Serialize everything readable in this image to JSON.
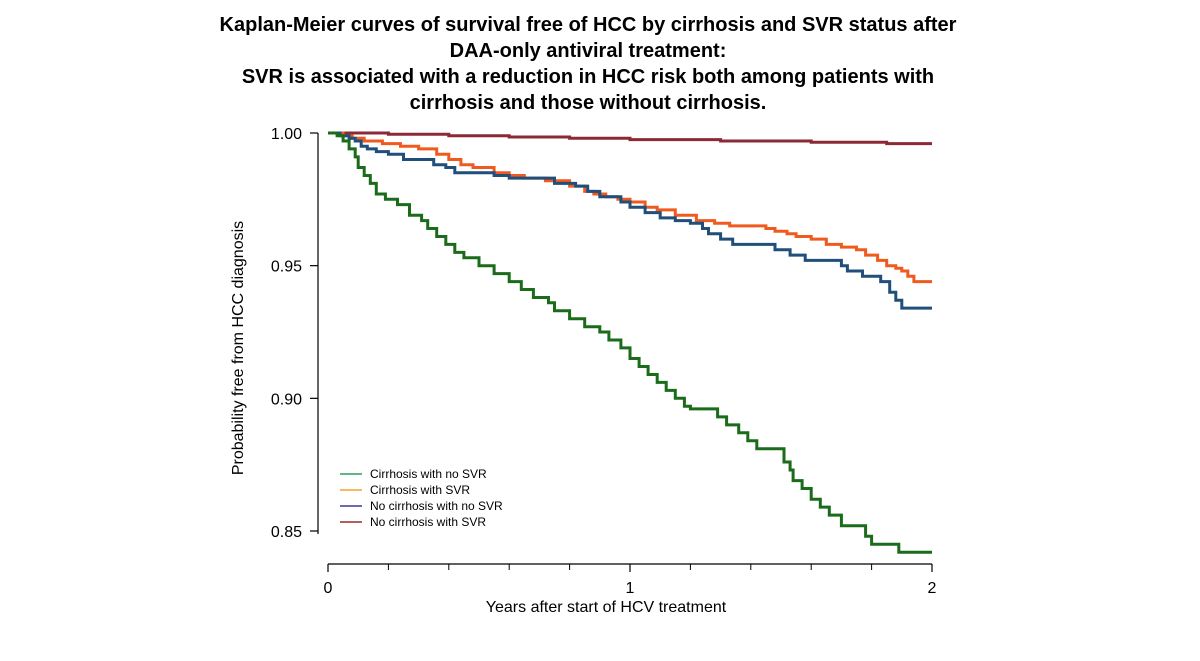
{
  "title_lines": [
    "Kaplan-Meier curves of survival free of HCC by cirrhosis and SVR status after",
    "DAA-only antiviral treatment:",
    "SVR is associated with a reduction in HCC risk both among patients with",
    "cirrhosis and those without cirrhosis."
  ],
  "chart_data": {
    "type": "line",
    "step": true,
    "title": "Kaplan-Meier curves of survival free of HCC by cirrhosis and SVR status after DAA-only antiviral treatment: SVR is associated with a reduction in HCC risk both among patients with cirrhosis and those without cirrhosis.",
    "xlabel": "Years after start of HCV treatment",
    "ylabel": "Probability free from HCC diagnosis",
    "xlim": [
      0,
      2
    ],
    "ylim": [
      0.843,
      1.0
    ],
    "x_ticks_major": [
      0,
      1,
      2
    ],
    "x_tick_labels": [
      "0",
      "1",
      "2"
    ],
    "x_ticks_minor": [
      0.2,
      0.4,
      0.6,
      0.8,
      1.2,
      1.4,
      1.6,
      1.8
    ],
    "y_ticks": [
      0.85,
      0.9,
      0.95,
      1.0
    ],
    "y_tick_labels": [
      "0.85",
      "0.90",
      "0.95",
      "1.00"
    ],
    "grid": false,
    "legend_position": "bottom-left",
    "series": [
      {
        "name": "Cirrhosis with no SVR",
        "color": "#1a6b1a",
        "legend_color": "#2e9e5e",
        "points": [
          [
            0,
            1.0
          ],
          [
            0.03,
            0.999
          ],
          [
            0.05,
            0.997
          ],
          [
            0.07,
            0.994
          ],
          [
            0.09,
            0.991
          ],
          [
            0.1,
            0.987
          ],
          [
            0.12,
            0.984
          ],
          [
            0.14,
            0.981
          ],
          [
            0.16,
            0.977
          ],
          [
            0.19,
            0.975
          ],
          [
            0.23,
            0.973
          ],
          [
            0.27,
            0.969
          ],
          [
            0.31,
            0.967
          ],
          [
            0.33,
            0.964
          ],
          [
            0.36,
            0.961
          ],
          [
            0.39,
            0.958
          ],
          [
            0.42,
            0.955
          ],
          [
            0.45,
            0.953
          ],
          [
            0.5,
            0.95
          ],
          [
            0.55,
            0.947
          ],
          [
            0.6,
            0.944
          ],
          [
            0.64,
            0.941
          ],
          [
            0.68,
            0.938
          ],
          [
            0.73,
            0.936
          ],
          [
            0.75,
            0.933
          ],
          [
            0.8,
            0.93
          ],
          [
            0.85,
            0.927
          ],
          [
            0.9,
            0.925
          ],
          [
            0.93,
            0.922
          ],
          [
            0.97,
            0.919
          ],
          [
            1.0,
            0.915
          ],
          [
            1.03,
            0.912
          ],
          [
            1.06,
            0.909
          ],
          [
            1.09,
            0.906
          ],
          [
            1.12,
            0.903
          ],
          [
            1.15,
            0.9
          ],
          [
            1.18,
            0.897
          ],
          [
            1.2,
            0.896
          ],
          [
            1.29,
            0.893
          ],
          [
            1.32,
            0.89
          ],
          [
            1.36,
            0.887
          ],
          [
            1.39,
            0.884
          ],
          [
            1.42,
            0.881
          ],
          [
            1.51,
            0.876
          ],
          [
            1.53,
            0.873
          ],
          [
            1.54,
            0.869
          ],
          [
            1.57,
            0.866
          ],
          [
            1.6,
            0.862
          ],
          [
            1.63,
            0.859
          ],
          [
            1.66,
            0.856
          ],
          [
            1.7,
            0.852
          ],
          [
            1.78,
            0.848
          ],
          [
            1.8,
            0.845
          ],
          [
            1.89,
            0.842
          ],
          [
            2.0,
            0.842
          ]
        ]
      },
      {
        "name": "Cirrhosis with SVR",
        "color": "#f05a1e",
        "legend_color": "#f5a030",
        "points": [
          [
            0,
            1.0
          ],
          [
            0.05,
            0.999
          ],
          [
            0.08,
            0.998
          ],
          [
            0.12,
            0.997
          ],
          [
            0.18,
            0.996
          ],
          [
            0.24,
            0.995
          ],
          [
            0.3,
            0.994
          ],
          [
            0.36,
            0.992
          ],
          [
            0.4,
            0.99
          ],
          [
            0.44,
            0.988
          ],
          [
            0.48,
            0.987
          ],
          [
            0.55,
            0.985
          ],
          [
            0.6,
            0.984
          ],
          [
            0.65,
            0.983
          ],
          [
            0.72,
            0.982
          ],
          [
            0.8,
            0.98
          ],
          [
            0.85,
            0.978
          ],
          [
            0.88,
            0.977
          ],
          [
            0.92,
            0.976
          ],
          [
            0.96,
            0.975
          ],
          [
            1.0,
            0.974
          ],
          [
            1.05,
            0.972
          ],
          [
            1.09,
            0.971
          ],
          [
            1.15,
            0.969
          ],
          [
            1.22,
            0.967
          ],
          [
            1.28,
            0.966
          ],
          [
            1.33,
            0.965
          ],
          [
            1.45,
            0.964
          ],
          [
            1.48,
            0.963
          ],
          [
            1.52,
            0.962
          ],
          [
            1.55,
            0.961
          ],
          [
            1.6,
            0.96
          ],
          [
            1.65,
            0.958
          ],
          [
            1.7,
            0.957
          ],
          [
            1.75,
            0.956
          ],
          [
            1.78,
            0.954
          ],
          [
            1.82,
            0.952
          ],
          [
            1.85,
            0.95
          ],
          [
            1.88,
            0.949
          ],
          [
            1.9,
            0.948
          ],
          [
            1.92,
            0.946
          ],
          [
            1.94,
            0.944
          ],
          [
            2.0,
            0.944
          ]
        ]
      },
      {
        "name": "No cirrhosis with no SVR",
        "color": "#1f4f7a",
        "legend_color": "#3a3a9a",
        "points": [
          [
            0,
            1.0
          ],
          [
            0.04,
            0.999
          ],
          [
            0.07,
            0.998
          ],
          [
            0.09,
            0.997
          ],
          [
            0.11,
            0.995
          ],
          [
            0.13,
            0.994
          ],
          [
            0.16,
            0.993
          ],
          [
            0.2,
            0.992
          ],
          [
            0.25,
            0.99
          ],
          [
            0.35,
            0.988
          ],
          [
            0.39,
            0.987
          ],
          [
            0.42,
            0.985
          ],
          [
            0.55,
            0.984
          ],
          [
            0.6,
            0.983
          ],
          [
            0.75,
            0.981
          ],
          [
            0.82,
            0.98
          ],
          [
            0.86,
            0.978
          ],
          [
            0.9,
            0.976
          ],
          [
            0.97,
            0.974
          ],
          [
            1.0,
            0.972
          ],
          [
            1.05,
            0.97
          ],
          [
            1.1,
            0.968
          ],
          [
            1.15,
            0.967
          ],
          [
            1.2,
            0.966
          ],
          [
            1.24,
            0.964
          ],
          [
            1.26,
            0.962
          ],
          [
            1.3,
            0.96
          ],
          [
            1.34,
            0.958
          ],
          [
            1.48,
            0.956
          ],
          [
            1.53,
            0.954
          ],
          [
            1.58,
            0.952
          ],
          [
            1.7,
            0.95
          ],
          [
            1.72,
            0.948
          ],
          [
            1.77,
            0.946
          ],
          [
            1.83,
            0.944
          ],
          [
            1.86,
            0.94
          ],
          [
            1.88,
            0.937
          ],
          [
            1.9,
            0.934
          ],
          [
            2.0,
            0.934
          ]
        ]
      },
      {
        "name": "No cirrhosis with SVR",
        "color": "#8b2a35",
        "legend_color": "#9b2a2a",
        "points": [
          [
            0,
            1.0
          ],
          [
            0.2,
            0.9995
          ],
          [
            0.4,
            0.999
          ],
          [
            0.6,
            0.9985
          ],
          [
            0.8,
            0.998
          ],
          [
            1.0,
            0.9975
          ],
          [
            1.3,
            0.997
          ],
          [
            1.6,
            0.9965
          ],
          [
            1.85,
            0.996
          ],
          [
            2.0,
            0.996
          ]
        ]
      }
    ]
  }
}
